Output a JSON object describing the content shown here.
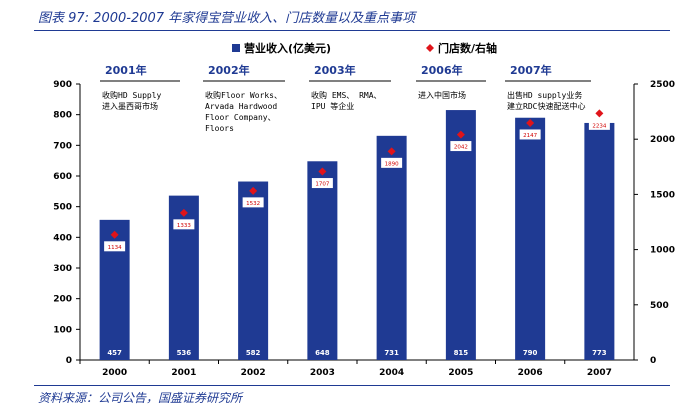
{
  "title": "图表 97: 2000-2007 年家得宝营业收入、门店数量以及重点事项",
  "source": "资料来源：公司公告，国盛证券研究所",
  "colors": {
    "bar": "#1f3a93",
    "marker": "#e0141a",
    "accent": "#1f3a93"
  },
  "chart_data": {
    "type": "bar",
    "categories": [
      "2000",
      "2001",
      "2002",
      "2003",
      "2004",
      "2005",
      "2006",
      "2007"
    ],
    "series": [
      {
        "name": "营业收入(亿美元)",
        "type": "bar",
        "axis": "left",
        "values": [
          457,
          536,
          582,
          648,
          731,
          815,
          790,
          773
        ]
      },
      {
        "name": "门店数/右轴",
        "type": "scatter",
        "axis": "right",
        "values": [
          1134,
          1333,
          1532,
          1707,
          1890,
          2042,
          2147,
          2234
        ]
      }
    ],
    "y_left": {
      "ylim": [
        0,
        900
      ],
      "ticks": [
        "0",
        "100",
        "200",
        "300",
        "400",
        "500",
        "600",
        "700",
        "800",
        "900"
      ]
    },
    "y_right": {
      "ylim": [
        0,
        2500
      ],
      "ticks": [
        "0",
        "500",
        "1000",
        "1500",
        "2000",
        "2500"
      ]
    },
    "legend": {
      "placement": "top-center",
      "bar_label": "营业收入(亿美元)",
      "marker_label": "门店数/右轴"
    },
    "annotations": [
      {
        "year": "2001年",
        "lines": [
          "收购HD Supply",
          "进入墨西哥市场"
        ]
      },
      {
        "year": "2002年",
        "lines": [
          "收购Floor Works、",
          "Arvada Hardwood",
          "Floor Company、",
          "Floors"
        ]
      },
      {
        "year": "2003年",
        "lines": [
          "收购 EMS、 RMA、",
          "IPU 等企业"
        ]
      },
      {
        "year": "2006年",
        "lines": [
          "进入中国市场"
        ]
      },
      {
        "year": "2007年",
        "lines": [
          "出售HD supply业务",
          "建立RDC快速配送中心"
        ]
      }
    ]
  }
}
